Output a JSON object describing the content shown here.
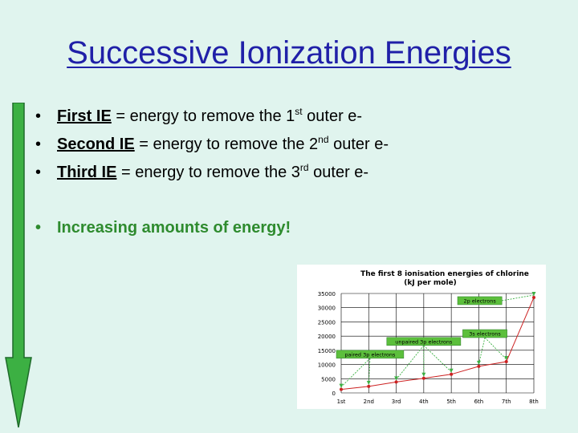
{
  "slide": {
    "title": "Successive Ionization Energies",
    "bullet_char": "•",
    "bullets": [
      {
        "term": "First IE",
        "text": " = energy to remove the 1",
        "sup": "st",
        "tail": " outer e-"
      },
      {
        "term": "Second IE",
        "text": " = energy to remove the 2",
        "sup": "nd",
        "tail": " outer e-"
      },
      {
        "term": "Third IE",
        "text": " = energy to remove the 3",
        "sup": "rd",
        "tail": " outer e-"
      }
    ],
    "emphasis": "Increasing amounts of energy!",
    "arrow_color": "#3cb043"
  },
  "chart_data": {
    "type": "line",
    "title": "The first 8 ionisation energies of chlorine",
    "subtitle": "(kJ per mole)",
    "categories": [
      "1st",
      "2nd",
      "3rd",
      "4th",
      "5th",
      "6th",
      "7th",
      "8th"
    ],
    "values": [
      1250,
      2300,
      3850,
      5150,
      6550,
      9350,
      11000,
      33600
    ],
    "ylim": [
      0,
      35000
    ],
    "yticks": [
      "0",
      "5000",
      "10000",
      "15000",
      "20000",
      "25000",
      "30000",
      "35000"
    ],
    "ytick_values": [
      0,
      5000,
      10000,
      15000,
      20000,
      25000,
      30000,
      35000
    ],
    "grid": true,
    "line_color": "#cc2222",
    "annotations": [
      {
        "label": "paired 3p electrons",
        "targets": [
          0,
          1
        ],
        "anchor": "left"
      },
      {
        "label": "unpaired 3p electrons",
        "targets": [
          2,
          3,
          4
        ],
        "anchor": "middle"
      },
      {
        "label": "3s electrons",
        "targets": [
          5,
          6
        ],
        "anchor": "right"
      },
      {
        "label": "2p electrons",
        "targets": [
          7
        ],
        "anchor": "top"
      }
    ],
    "annotation_fill": "#5cbf3c"
  }
}
